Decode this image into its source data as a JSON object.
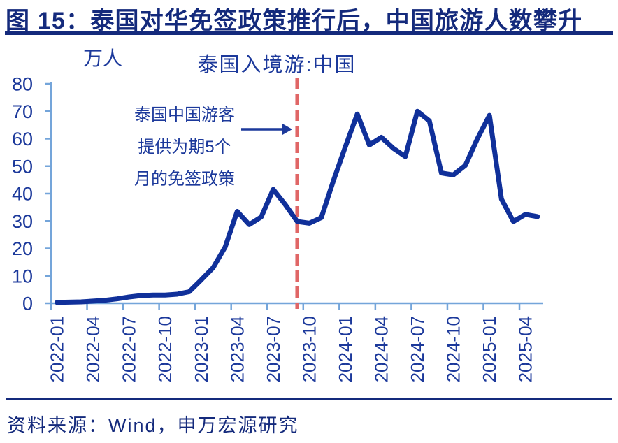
{
  "header": {
    "title": "图 15：泰国对华免签政策推行后，中国旅游人数攀升"
  },
  "footer": {
    "source": "资料来源：Wind，申万宏源研究"
  },
  "chart_data": {
    "type": "line",
    "title": "泰国入境游:中国",
    "unit_label": "万人",
    "x_start_month": "2022-01",
    "x_tick_labels": [
      "2022-01",
      "2022-04",
      "2022-07",
      "2022-10",
      "2023-01",
      "2023-04",
      "2023-07",
      "2023-10",
      "2024-01",
      "2024-04",
      "2024-07",
      "2024-10",
      "2025-01",
      "2025-04"
    ],
    "y_ticks": [
      0,
      10,
      20,
      30,
      40,
      50,
      60,
      70,
      80
    ],
    "ylim": [
      0,
      80
    ],
    "grid": false,
    "legend": "none",
    "axis_color": "#74a5da",
    "label_color": "#1c399b",
    "series": [
      {
        "name": "泰国入境游:中国",
        "color": "#10309a",
        "months": "monthly 2022-01 to 2025-05",
        "values": [
          0.3,
          0.4,
          0.5,
          0.8,
          1.1,
          1.6,
          2.3,
          2.8,
          3.0,
          3.0,
          3.3,
          4.2,
          8.5,
          13,
          20.5,
          33.5,
          28.7,
          31.5,
          41.5,
          36,
          29.8,
          29.2,
          31.2,
          44.5,
          57,
          69,
          57.7,
          60.5,
          56.5,
          53.5,
          70,
          66.5,
          47.5,
          46.8,
          50.3,
          60,
          68.5,
          38,
          29.8,
          32.4,
          31.6
        ]
      }
    ],
    "event_marker": {
      "month": "2023-09",
      "month_index": 20,
      "color": "#e06666",
      "style": "dashed-vertical-line"
    },
    "annotation": {
      "lines": [
        "泰国中国游客",
        "提供为期5个",
        "月的免签政策"
      ],
      "color": "#1c399b",
      "arrow": "points right at dashed line"
    }
  }
}
